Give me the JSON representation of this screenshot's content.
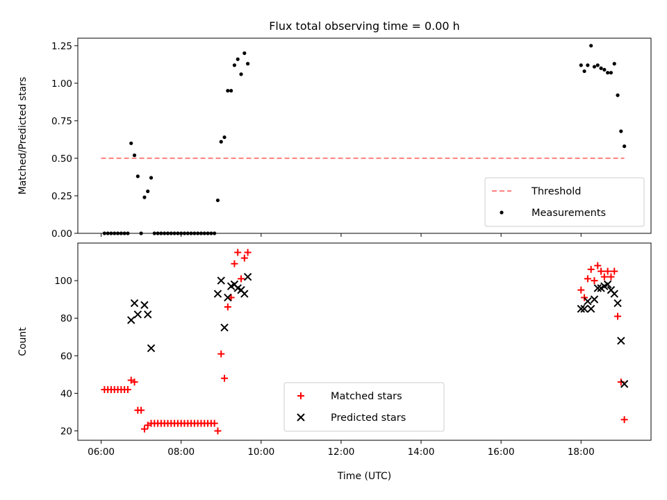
{
  "chart_data": [
    {
      "type": "scatter",
      "title": "Flux total observing time = 0.00 h",
      "ylabel": "Matched/Predicted stars",
      "xlim": [
        "05:25",
        "19:45"
      ],
      "ylim": [
        0,
        1.3
      ],
      "yticks": [
        "0.00",
        "0.25",
        "0.50",
        "0.75",
        "1.00",
        "1.25"
      ],
      "legend_position": "lower-right",
      "threshold": {
        "name": "Threshold",
        "value": 0.5,
        "x_range": [
          "06:00",
          "19:05"
        ],
        "color": "#ff7f7f"
      },
      "series": [
        {
          "name": "Measurements",
          "color": "#000000",
          "marker": "dot",
          "points": [
            [
              "06:05",
              0
            ],
            [
              "06:10",
              0
            ],
            [
              "06:15",
              0
            ],
            [
              "06:20",
              0
            ],
            [
              "06:25",
              0
            ],
            [
              "06:30",
              0
            ],
            [
              "06:35",
              0
            ],
            [
              "06:40",
              0
            ],
            [
              "06:45",
              0.6
            ],
            [
              "06:50",
              0.52
            ],
            [
              "06:55",
              0.38
            ],
            [
              "07:00",
              0
            ],
            [
              "07:05",
              0.24
            ],
            [
              "07:10",
              0.28
            ],
            [
              "07:15",
              0.37
            ],
            [
              "07:20",
              0
            ],
            [
              "07:25",
              0
            ],
            [
              "07:30",
              0
            ],
            [
              "07:35",
              0
            ],
            [
              "07:40",
              0
            ],
            [
              "07:45",
              0
            ],
            [
              "07:50",
              0
            ],
            [
              "07:55",
              0
            ],
            [
              "08:00",
              0
            ],
            [
              "08:05",
              0
            ],
            [
              "08:10",
              0
            ],
            [
              "08:15",
              0
            ],
            [
              "08:20",
              0
            ],
            [
              "08:25",
              0
            ],
            [
              "08:30",
              0
            ],
            [
              "08:35",
              0
            ],
            [
              "08:40",
              0
            ],
            [
              "08:45",
              0
            ],
            [
              "08:50",
              0
            ],
            [
              "08:55",
              0.22
            ],
            [
              "09:00",
              0.61
            ],
            [
              "09:05",
              0.64
            ],
            [
              "09:10",
              0.95
            ],
            [
              "09:15",
              0.95
            ],
            [
              "09:20",
              1.12
            ],
            [
              "09:25",
              1.16
            ],
            [
              "09:30",
              1.06
            ],
            [
              "09:35",
              1.2
            ],
            [
              "09:40",
              1.13
            ],
            [
              "18:00",
              1.12
            ],
            [
              "18:05",
              1.08
            ],
            [
              "18:10",
              1.12
            ],
            [
              "18:15",
              1.25
            ],
            [
              "18:20",
              1.11
            ],
            [
              "18:25",
              1.12
            ],
            [
              "18:30",
              1.1
            ],
            [
              "18:35",
              1.09
            ],
            [
              "18:40",
              1.07
            ],
            [
              "18:45",
              1.07
            ],
            [
              "18:50",
              1.13
            ],
            [
              "18:55",
              0.92
            ],
            [
              "19:00",
              0.68
            ],
            [
              "19:05",
              0.58
            ]
          ]
        }
      ]
    },
    {
      "type": "scatter",
      "xlabel": "Time (UTC)",
      "ylabel": "Count",
      "xlim": [
        "05:25",
        "19:45"
      ],
      "ylim": [
        15,
        120
      ],
      "xticks": [
        "06:00",
        "08:00",
        "10:00",
        "12:00",
        "14:00",
        "16:00",
        "18:00"
      ],
      "yticks": [
        "20",
        "40",
        "60",
        "80",
        "100"
      ],
      "legend_position": "lower-center",
      "series": [
        {
          "name": "Matched stars",
          "color": "#ff0000",
          "marker": "plus",
          "points": [
            [
              "06:05",
              42
            ],
            [
              "06:10",
              42
            ],
            [
              "06:15",
              42
            ],
            [
              "06:20",
              42
            ],
            [
              "06:25",
              42
            ],
            [
              "06:30",
              42
            ],
            [
              "06:35",
              42
            ],
            [
              "06:40",
              42
            ],
            [
              "06:45",
              47
            ],
            [
              "06:50",
              46
            ],
            [
              "06:55",
              31
            ],
            [
              "07:00",
              31
            ],
            [
              "07:05",
              21
            ],
            [
              "07:10",
              23
            ],
            [
              "07:15",
              24
            ],
            [
              "07:20",
              24
            ],
            [
              "07:25",
              24
            ],
            [
              "07:30",
              24
            ],
            [
              "07:35",
              24
            ],
            [
              "07:40",
              24
            ],
            [
              "07:45",
              24
            ],
            [
              "07:50",
              24
            ],
            [
              "07:55",
              24
            ],
            [
              "08:00",
              24
            ],
            [
              "08:05",
              24
            ],
            [
              "08:10",
              24
            ],
            [
              "08:15",
              24
            ],
            [
              "08:20",
              24
            ],
            [
              "08:25",
              24
            ],
            [
              "08:30",
              24
            ],
            [
              "08:35",
              24
            ],
            [
              "08:40",
              24
            ],
            [
              "08:45",
              24
            ],
            [
              "08:50",
              24
            ],
            [
              "08:55",
              20
            ],
            [
              "09:00",
              61
            ],
            [
              "09:05",
              48
            ],
            [
              "09:10",
              86
            ],
            [
              "09:15",
              91
            ],
            [
              "09:20",
              109
            ],
            [
              "09:25",
              115
            ],
            [
              "09:30",
              101
            ],
            [
              "09:35",
              112
            ],
            [
              "09:40",
              115
            ],
            [
              "18:00",
              95
            ],
            [
              "18:05",
              91
            ],
            [
              "18:10",
              101
            ],
            [
              "18:15",
              106
            ],
            [
              "18:20",
              100
            ],
            [
              "18:25",
              108
            ],
            [
              "18:30",
              105
            ],
            [
              "18:35",
              102
            ],
            [
              "18:40",
              105
            ],
            [
              "18:45",
              102
            ],
            [
              "18:50",
              105
            ],
            [
              "18:55",
              81
            ],
            [
              "19:00",
              46
            ],
            [
              "19:05",
              26
            ]
          ]
        },
        {
          "name": "Predicted stars",
          "color": "#000000",
          "marker": "x",
          "points": [
            [
              "06:45",
              79
            ],
            [
              "06:50",
              88
            ],
            [
              "06:55",
              82
            ],
            [
              "07:05",
              87
            ],
            [
              "07:10",
              82
            ],
            [
              "07:15",
              64
            ],
            [
              "08:55",
              93
            ],
            [
              "09:00",
              100
            ],
            [
              "09:05",
              75
            ],
            [
              "09:10",
              91
            ],
            [
              "09:15",
              97
            ],
            [
              "09:20",
              98
            ],
            [
              "09:25",
              96
            ],
            [
              "09:30",
              95
            ],
            [
              "09:35",
              93
            ],
            [
              "09:40",
              102
            ],
            [
              "18:00",
              85
            ],
            [
              "18:05",
              85
            ],
            [
              "18:10",
              89
            ],
            [
              "18:15",
              85
            ],
            [
              "18:20",
              90
            ],
            [
              "18:25",
              96
            ],
            [
              "18:30",
              96
            ],
            [
              "18:35",
              97
            ],
            [
              "18:40",
              98
            ],
            [
              "18:45",
              95
            ],
            [
              "18:50",
              93
            ],
            [
              "18:55",
              88
            ],
            [
              "19:00",
              68
            ],
            [
              "19:05",
              45
            ]
          ]
        }
      ]
    }
  ]
}
